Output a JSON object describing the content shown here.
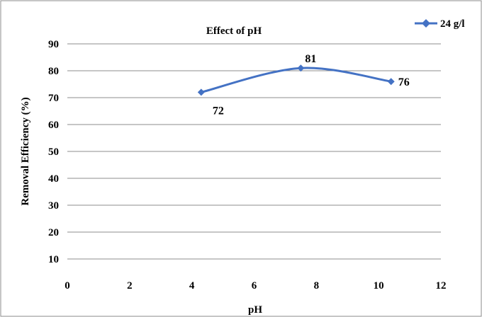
{
  "chart_data": {
    "type": "line",
    "title": "Effect of pH",
    "xlabel": "pH",
    "ylabel": "Removal Efficiency (%)",
    "xlim": [
      0,
      12
    ],
    "ylim": [
      10,
      90
    ],
    "xticks": [
      0,
      2,
      4,
      6,
      8,
      10,
      12
    ],
    "yticks": [
      10,
      20,
      30,
      40,
      50,
      60,
      70,
      80,
      90
    ],
    "grid": "horizontal",
    "legend_position": "top-right",
    "series": [
      {
        "name": "24 g/l",
        "color": "#4472C4",
        "marker": "diamond",
        "smooth": true,
        "points": [
          {
            "x": 4.3,
            "y": 72
          },
          {
            "x": 7.5,
            "y": 81
          },
          {
            "x": 10.4,
            "y": 76
          }
        ],
        "data_labels": [
          "72",
          "81",
          "76"
        ]
      }
    ]
  }
}
